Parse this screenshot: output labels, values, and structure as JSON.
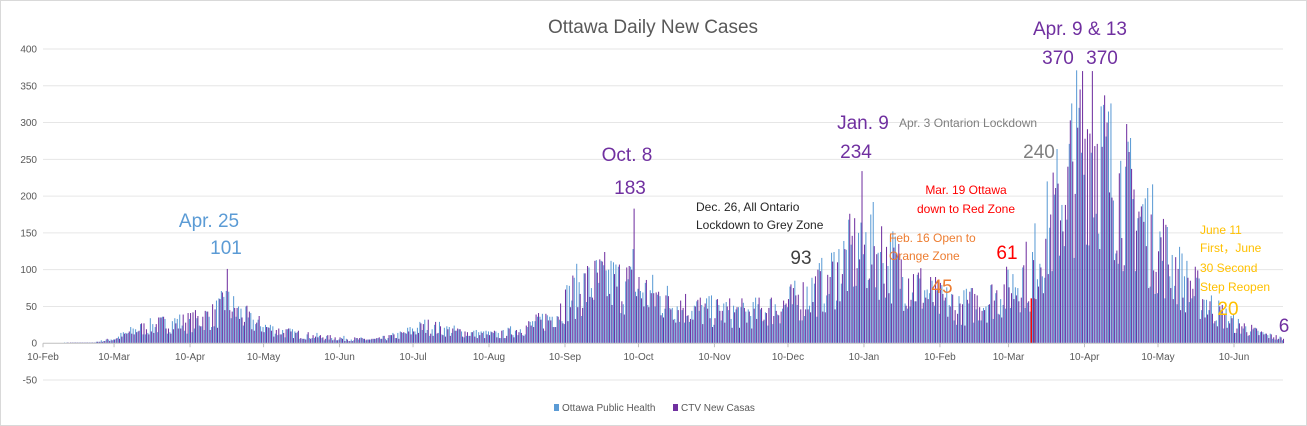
{
  "chart_data": {
    "type": "bar",
    "title": "Ottawa Daily New Cases",
    "xlabel": "",
    "ylabel": "",
    "ylim": [
      -50,
      400
    ],
    "yticks": [
      -50,
      0,
      50,
      100,
      150,
      200,
      250,
      300,
      350,
      400
    ],
    "x_start": "2020-02-10",
    "x_end": "2021-06-30",
    "x_tick_labels": [
      "10-Feb",
      "10-Mar",
      "10-Apr",
      "10-May",
      "10-Jun",
      "10-Jul",
      "10-Aug",
      "10-Sep",
      "10-Oct",
      "10-Nov",
      "10-Dec",
      "10-Jan",
      "10-Feb",
      "10-Mar",
      "10-Apr",
      "10-May",
      "10-Jun"
    ],
    "x_tick_dates": [
      "2020-02-10",
      "2020-03-10",
      "2020-04-10",
      "2020-05-10",
      "2020-06-10",
      "2020-07-10",
      "2020-08-10",
      "2020-09-10",
      "2020-10-10",
      "2020-11-10",
      "2020-12-10",
      "2021-01-10",
      "2021-02-10",
      "2021-03-10",
      "2021-04-10",
      "2021-05-10",
      "2021-06-10"
    ],
    "legend_position": "bottom",
    "series": [
      {
        "name": "Ottawa Public Health",
        "color": "#5B9BD5"
      },
      {
        "name": "CTV New Casas",
        "color": "#7030A0"
      }
    ],
    "key_points": [
      {
        "date": "2020-04-25",
        "value": 101
      },
      {
        "date": "2020-10-08",
        "value": 183
      },
      {
        "date": "2020-12-26",
        "value": 93
      },
      {
        "date": "2021-01-09",
        "value": 234
      },
      {
        "date": "2021-02-16",
        "value": 45
      },
      {
        "date": "2021-03-19",
        "value": 61,
        "highlight_color": "#FF0000"
      },
      {
        "date": "2021-04-03",
        "value": 240
      },
      {
        "date": "2021-04-09",
        "value": 370
      },
      {
        "date": "2021-04-13",
        "value": 370
      },
      {
        "date": "2021-06-11",
        "value": 20
      },
      {
        "date": "2021-06-30",
        "value": 6
      }
    ],
    "trend": [
      [
        "2020-02-10",
        0
      ],
      [
        "2020-03-01",
        1
      ],
      [
        "2020-03-10",
        6
      ],
      [
        "2020-03-20",
        20
      ],
      [
        "2020-04-01",
        28
      ],
      [
        "2020-04-10",
        30
      ],
      [
        "2020-04-20",
        40
      ],
      [
        "2020-04-25",
        55
      ],
      [
        "2020-05-05",
        30
      ],
      [
        "2020-05-15",
        18
      ],
      [
        "2020-05-25",
        12
      ],
      [
        "2020-06-05",
        8
      ],
      [
        "2020-06-15",
        6
      ],
      [
        "2020-06-25",
        5
      ],
      [
        "2020-07-05",
        12
      ],
      [
        "2020-07-15",
        24
      ],
      [
        "2020-07-25",
        18
      ],
      [
        "2020-08-05",
        13
      ],
      [
        "2020-08-15",
        12
      ],
      [
        "2020-08-25",
        22
      ],
      [
        "2020-09-05",
        38
      ],
      [
        "2020-09-15",
        75
      ],
      [
        "2020-09-25",
        88
      ],
      [
        "2020-10-05",
        82
      ],
      [
        "2020-10-15",
        68
      ],
      [
        "2020-10-25",
        55
      ],
      [
        "2020-11-05",
        46
      ],
      [
        "2020-11-15",
        44
      ],
      [
        "2020-11-25",
        42
      ],
      [
        "2020-12-05",
        50
      ],
      [
        "2020-12-15",
        62
      ],
      [
        "2020-12-25",
        85
      ],
      [
        "2021-01-05",
        125
      ],
      [
        "2021-01-12",
        138
      ],
      [
        "2021-01-20",
        118
      ],
      [
        "2021-01-30",
        85
      ],
      [
        "2021-02-10",
        58
      ],
      [
        "2021-02-20",
        52
      ],
      [
        "2021-03-01",
        60
      ],
      [
        "2021-03-10",
        75
      ],
      [
        "2021-03-20",
        110
      ],
      [
        "2021-03-28",
        170
      ],
      [
        "2021-04-05",
        250
      ],
      [
        "2021-04-12",
        295
      ],
      [
        "2021-04-20",
        245
      ],
      [
        "2021-04-30",
        195
      ],
      [
        "2021-05-10",
        140
      ],
      [
        "2021-05-20",
        90
      ],
      [
        "2021-06-01",
        50
      ],
      [
        "2021-06-10",
        28
      ],
      [
        "2021-06-20",
        14
      ],
      [
        "2021-06-30",
        6
      ]
    ]
  },
  "annotations": [
    {
      "id": "apr25-date",
      "text": "Apr. 25",
      "color": "#5B9BD5"
    },
    {
      "id": "apr25-value",
      "text": "101",
      "color": "#5B9BD5"
    },
    {
      "id": "oct8-date",
      "text": "Oct. 8",
      "color": "#7030A0"
    },
    {
      "id": "oct8-value",
      "text": "183",
      "color": "#7030A0"
    },
    {
      "id": "dec26-line1",
      "text": "Dec. 26, All Ontario",
      "color": "#262626"
    },
    {
      "id": "dec26-line2",
      "text": "Lockdown to Grey Zone",
      "color": "#262626"
    },
    {
      "id": "dec26-value",
      "text": "93",
      "color": "#404040"
    },
    {
      "id": "jan9-date",
      "text": "Jan. 9",
      "color": "#7030A0"
    },
    {
      "id": "jan9-value",
      "text": "234",
      "color": "#7030A0"
    },
    {
      "id": "apr3-text",
      "text": "Apr. 3 Ontarion Lockdown",
      "color": "#7F7F7F"
    },
    {
      "id": "apr3-value",
      "text": "240",
      "color": "#7F7F7F"
    },
    {
      "id": "feb16-line1",
      "text": "Feb. 16 Open to",
      "color": "#ED7D31"
    },
    {
      "id": "feb16-line2",
      "text": "Orange Zone",
      "color": "#ED7D31"
    },
    {
      "id": "feb16-value",
      "text": "45",
      "color": "#ED7D31"
    },
    {
      "id": "mar19-line1",
      "text": "Mar. 19 Ottawa",
      "color": "#FF0000"
    },
    {
      "id": "mar19-line2",
      "text": "down to Red Zone",
      "color": "#FF0000"
    },
    {
      "id": "mar19-value",
      "text": "61",
      "color": "#FF0000"
    },
    {
      "id": "apr9-date",
      "text": "Apr. 9 & 13",
      "color": "#7030A0"
    },
    {
      "id": "apr9-value",
      "text": "370",
      "color": "#7030A0"
    },
    {
      "id": "apr13-value",
      "text": "370",
      "color": "#7030A0"
    },
    {
      "id": "jun11-line1",
      "text": "June 11",
      "color": "#FFC000"
    },
    {
      "id": "jun11-line2",
      "text": "First，June",
      "color": "#FFC000"
    },
    {
      "id": "jun11-line3",
      "text": "30 Second",
      "color": "#FFC000"
    },
    {
      "id": "jun11-line4",
      "text": "Step Reopen",
      "color": "#FFC000"
    },
    {
      "id": "jun11-value",
      "text": "20",
      "color": "#FFC000"
    },
    {
      "id": "jun30-value",
      "text": "6",
      "color": "#7030A0"
    }
  ]
}
